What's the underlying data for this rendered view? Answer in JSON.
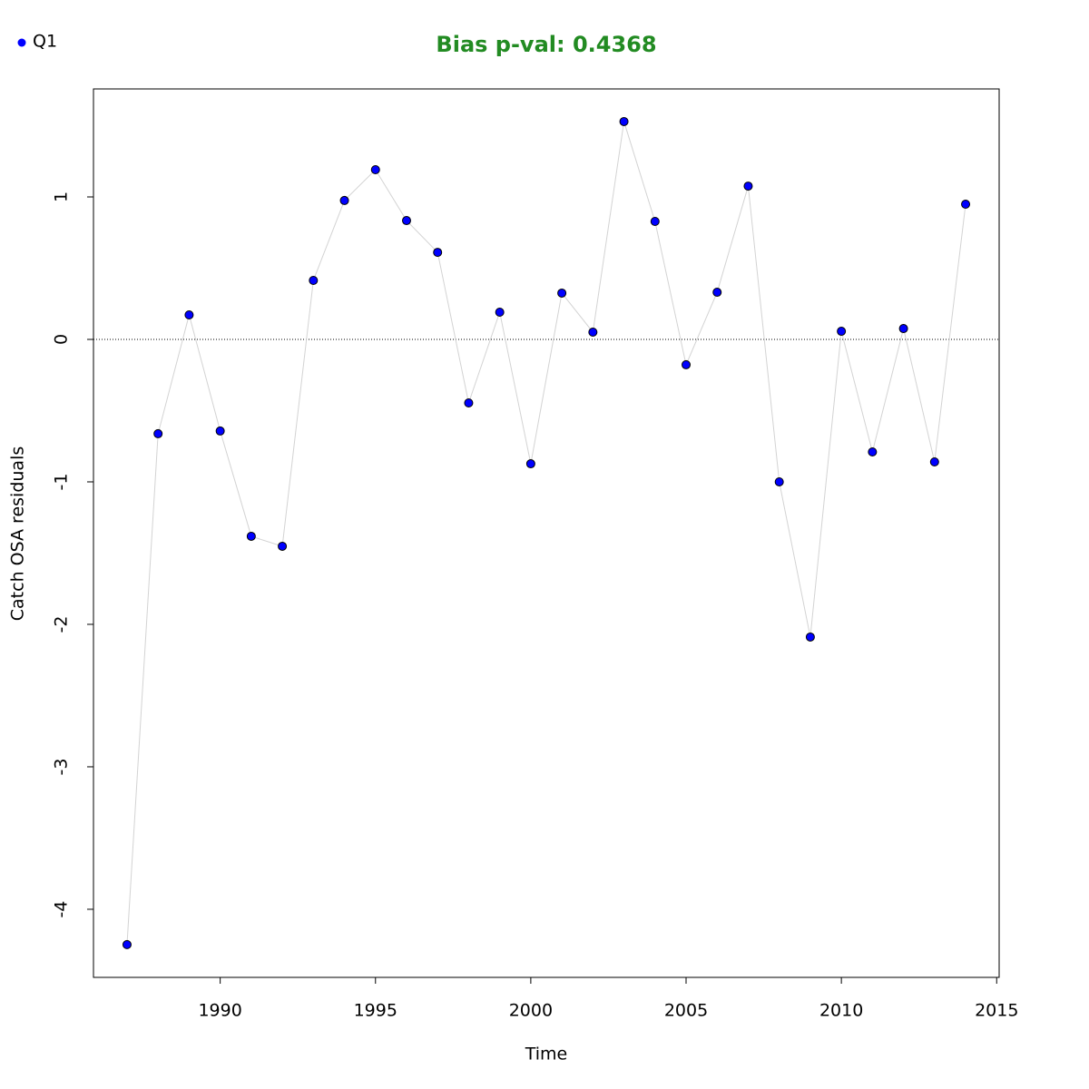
{
  "chart_data": {
    "type": "scatter",
    "title": "Bias p-val: 0.4368",
    "title_color": "#228b22",
    "xlabel": "Time",
    "ylabel": "Catch OSA residuals",
    "x": [
      1987,
      1988,
      1989,
      1990,
      1991,
      1992,
      1993,
      1994,
      1995,
      1996,
      1997,
      1998,
      1999,
      2000,
      2001,
      2002,
      2003,
      2004,
      2005,
      2006,
      2007,
      2008,
      2009,
      2010,
      2011,
      2012,
      2013,
      2014
    ],
    "series": [
      {
        "name": "Q1",
        "color": "#0000ff",
        "values": [
          -4.248,
          -0.662,
          0.172,
          -0.643,
          -1.382,
          -1.452,
          0.414,
          0.975,
          1.191,
          0.834,
          0.611,
          -0.446,
          0.191,
          -0.873,
          0.325,
          0.051,
          1.529,
          0.828,
          -0.178,
          0.331,
          1.076,
          -1.0,
          -2.089,
          0.057,
          -0.79,
          0.076,
          -0.86,
          0.949
        ]
      }
    ],
    "line_color": "#d3d3d3",
    "hline": 0,
    "xlim": [
      1985.92,
      2015.08
    ],
    "ylim": [
      -4.478,
      1.758
    ],
    "xticks": [
      1990,
      1995,
      2000,
      2005,
      2010,
      2015
    ],
    "yticks": [
      -4,
      -3,
      -2,
      -1,
      0,
      1
    ],
    "legend": "top-left"
  }
}
